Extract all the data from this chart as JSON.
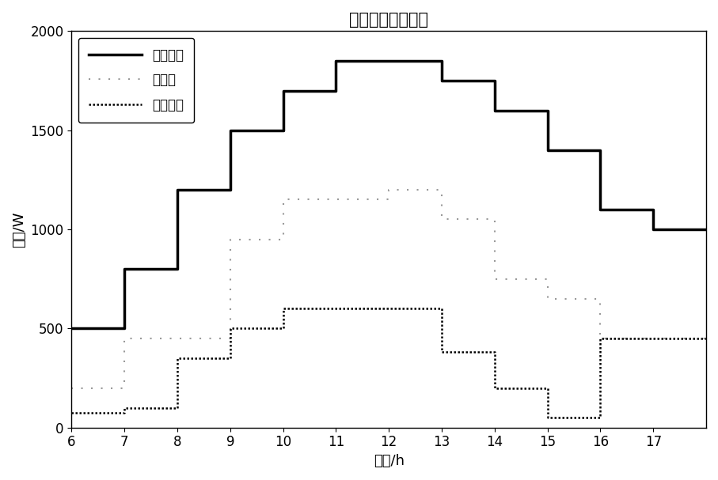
{
  "title": "光伏出力预测区间",
  "xlabel": "时间/h",
  "ylabel": "功率/W",
  "xlim": [
    6,
    18
  ],
  "ylim": [
    0,
    2000
  ],
  "xticks": [
    6,
    7,
    8,
    9,
    10,
    11,
    12,
    13,
    14,
    15,
    16,
    17
  ],
  "yticks": [
    0,
    500,
    1000,
    1500,
    2000
  ],
  "upper_x": [
    6,
    7,
    7,
    8,
    8,
    9,
    9,
    10,
    10,
    11,
    11,
    13,
    13,
    14,
    14,
    15,
    15,
    16,
    16,
    17,
    17,
    18
  ],
  "upper_y": [
    500,
    500,
    800,
    800,
    1200,
    1200,
    1500,
    1500,
    1700,
    1700,
    1850,
    1850,
    1750,
    1750,
    1600,
    1600,
    1400,
    1400,
    1100,
    1100,
    1000,
    1000
  ],
  "pred_x": [
    6,
    7,
    7,
    8,
    8,
    9,
    9,
    10,
    10,
    12,
    12,
    13,
    13,
    14,
    14,
    15,
    15,
    16,
    16,
    17,
    17,
    18
  ],
  "pred_y": [
    200,
    200,
    450,
    450,
    450,
    450,
    950,
    950,
    1150,
    1150,
    1200,
    1200,
    1050,
    1050,
    750,
    750,
    650,
    650,
    450,
    450,
    450,
    450
  ],
  "lower_x": [
    6,
    7,
    7,
    8,
    8,
    9,
    9,
    10,
    10,
    13,
    13,
    14,
    14,
    15,
    15,
    16,
    16,
    17,
    17,
    18
  ],
  "lower_y": [
    75,
    75,
    100,
    100,
    350,
    350,
    500,
    500,
    600,
    600,
    380,
    380,
    200,
    200,
    50,
    50,
    450,
    450,
    450,
    450
  ],
  "upper_label": "功率上限",
  "pred_label": "预测値",
  "lower_label": "功率下限",
  "upper_linewidth": 2.5,
  "pred_linewidth": 1.5,
  "lower_linewidth": 1.8,
  "title_fontsize": 15,
  "label_fontsize": 13,
  "tick_fontsize": 12,
  "legend_fontsize": 12
}
